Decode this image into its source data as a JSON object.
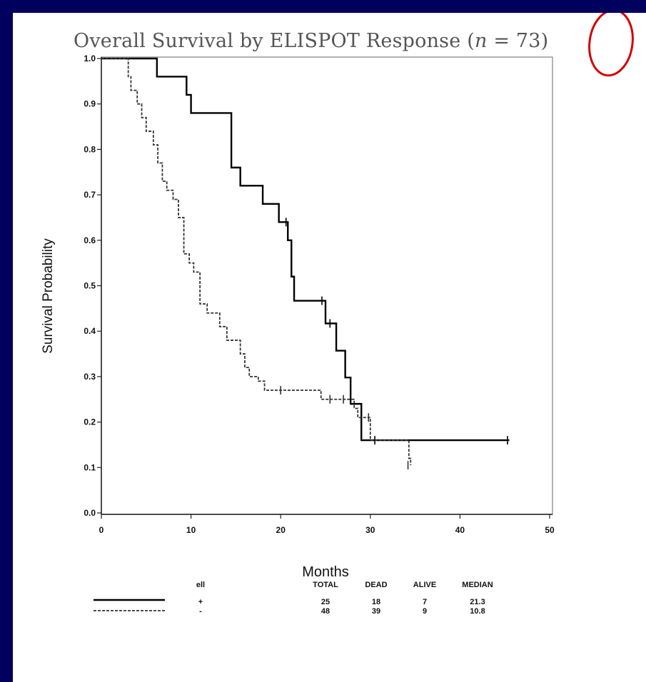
{
  "chart_data": {
    "type": "line",
    "title": "Overall Survival by ELISPOT Response (n = 73)",
    "title_parts": {
      "prefix": "Overall Survival by ELISPOT Response (",
      "var": "n",
      "suffix": " = 73)"
    },
    "xlabel": "Months",
    "ylabel": "Survival Probability",
    "xlim": [
      0,
      50
    ],
    "ylim": [
      0,
      1
    ],
    "xticks": [
      "0",
      "10",
      "20",
      "30",
      "40",
      "50"
    ],
    "yticks": [
      "0.0",
      "0.1",
      "0.2",
      "0.3",
      "0.4",
      "0.5",
      "0.6",
      "0.7",
      "0.8",
      "0.9",
      "1.0"
    ],
    "grid": false,
    "series": [
      {
        "name": "+",
        "style": "solid",
        "color": "#000000",
        "steps": [
          [
            0,
            1.0
          ],
          [
            6.2,
            0.96
          ],
          [
            9.5,
            0.92
          ],
          [
            10,
            0.88
          ],
          [
            14.5,
            0.76
          ],
          [
            15.5,
            0.72
          ],
          [
            18,
            0.68
          ],
          [
            19.8,
            0.64
          ],
          [
            20.8,
            0.6
          ],
          [
            21.2,
            0.52
          ],
          [
            21.5,
            0.467
          ],
          [
            25,
            0.417
          ],
          [
            26.2,
            0.357
          ],
          [
            27.2,
            0.298
          ],
          [
            27.8,
            0.24
          ],
          [
            29,
            0.16
          ],
          [
            45.5,
            0.16
          ]
        ],
        "censor": [
          [
            20.6,
            0.64
          ],
          [
            24.6,
            0.467
          ],
          [
            25.5,
            0.417
          ],
          [
            30.5,
            0.16
          ],
          [
            45.3,
            0.16
          ]
        ]
      },
      {
        "name": "-",
        "style": "dashed",
        "color": "#333333",
        "steps": [
          [
            0,
            1.0
          ],
          [
            3,
            0.96
          ],
          [
            3.3,
            0.93
          ],
          [
            4,
            0.9
          ],
          [
            4.5,
            0.87
          ],
          [
            5,
            0.84
          ],
          [
            5.8,
            0.81
          ],
          [
            6.3,
            0.77
          ],
          [
            6.8,
            0.73
          ],
          [
            7.3,
            0.71
          ],
          [
            8,
            0.69
          ],
          [
            8.6,
            0.65
          ],
          [
            9.2,
            0.57
          ],
          [
            9.8,
            0.55
          ],
          [
            10.3,
            0.53
          ],
          [
            11,
            0.46
          ],
          [
            11.8,
            0.44
          ],
          [
            13.2,
            0.41
          ],
          [
            14,
            0.38
          ],
          [
            15.5,
            0.35
          ],
          [
            16,
            0.32
          ],
          [
            16.5,
            0.3
          ],
          [
            17.5,
            0.29
          ],
          [
            18.2,
            0.27
          ],
          [
            24.5,
            0.25
          ],
          [
            28.2,
            0.23
          ],
          [
            28.6,
            0.21
          ],
          [
            30,
            0.16
          ],
          [
            34.3,
            0.12
          ],
          [
            34.5,
            0.105
          ]
        ],
        "censor": [
          [
            20,
            0.27
          ],
          [
            25.5,
            0.25
          ],
          [
            27,
            0.25
          ],
          [
            29.8,
            0.21
          ],
          [
            34.2,
            0.105
          ]
        ]
      }
    ],
    "table": {
      "headers": [
        "ell",
        "TOTAL",
        "DEAD",
        "ALIVE",
        "MEDIAN"
      ],
      "rows": [
        [
          "+",
          "25",
          "18",
          "7",
          "21.3"
        ],
        [
          "-",
          "48",
          "39",
          "9",
          "10.8"
        ]
      ]
    }
  },
  "colors": {
    "background": "#00005e",
    "slide": "#ffffff",
    "highlight": "#d40000"
  }
}
